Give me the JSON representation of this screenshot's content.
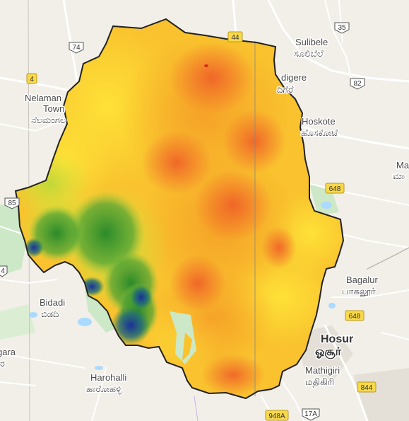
{
  "places": {
    "sulibele": "Sulibele",
    "sulibele_local": "ಸೂಲಿಬೆಲೆ",
    "nelamangala_1": "Nelaman",
    "nelamangala_2": "Town",
    "nelamangala_local": "ನೆಲಮಂಗಲ",
    "devanahalli_partial": "digere",
    "devanahalli_partial_local": "ದಿಗೆರೆ",
    "hoskote": "Hoskote",
    "hoskote_local": "ಹೊಸಕೋಟೆ",
    "right_edge_partial": "Ma",
    "right_edge_partial_local": "ಮಾ",
    "bagalur": "Bagalur",
    "bagalur_local": "பாகலூர்",
    "bidadi": "Bidadi",
    "bidadi_local": "ಬಿಡದಿ",
    "hosur": "Hosur",
    "hosur_local": "ஓசூர்",
    "mathigiri": "Mathigiri",
    "mathigiri_local": "மதிகிரி",
    "harohalli": "Harohalli",
    "harohalli_local": "ಹಾರೋಹಳ್ಳಿ",
    "left_edge_partial": "gara",
    "left_edge_partial_local": "ರ"
  },
  "highways": {
    "nh44": "44",
    "nh35": "35",
    "nh74": "74",
    "nh4": "4",
    "nh82": "82",
    "nh648_top": "648",
    "nh85": "85",
    "nh4_left": "4",
    "nh648_bottom": "648",
    "nh844": "844",
    "nh948a": "948A",
    "nh17a": "17A"
  },
  "colors": {
    "elevation_high": "#e8402a",
    "elevation_mid_high": "#f59a26",
    "elevation_mid": "#ffe033",
    "elevation_low": "#2e8b2e",
    "elevation_lowest": "#1a2f8f",
    "boundary": "#222222",
    "land": "#f2efe9",
    "water": "#aadaff",
    "green": "#cde8c6",
    "road": "#ffffff"
  }
}
